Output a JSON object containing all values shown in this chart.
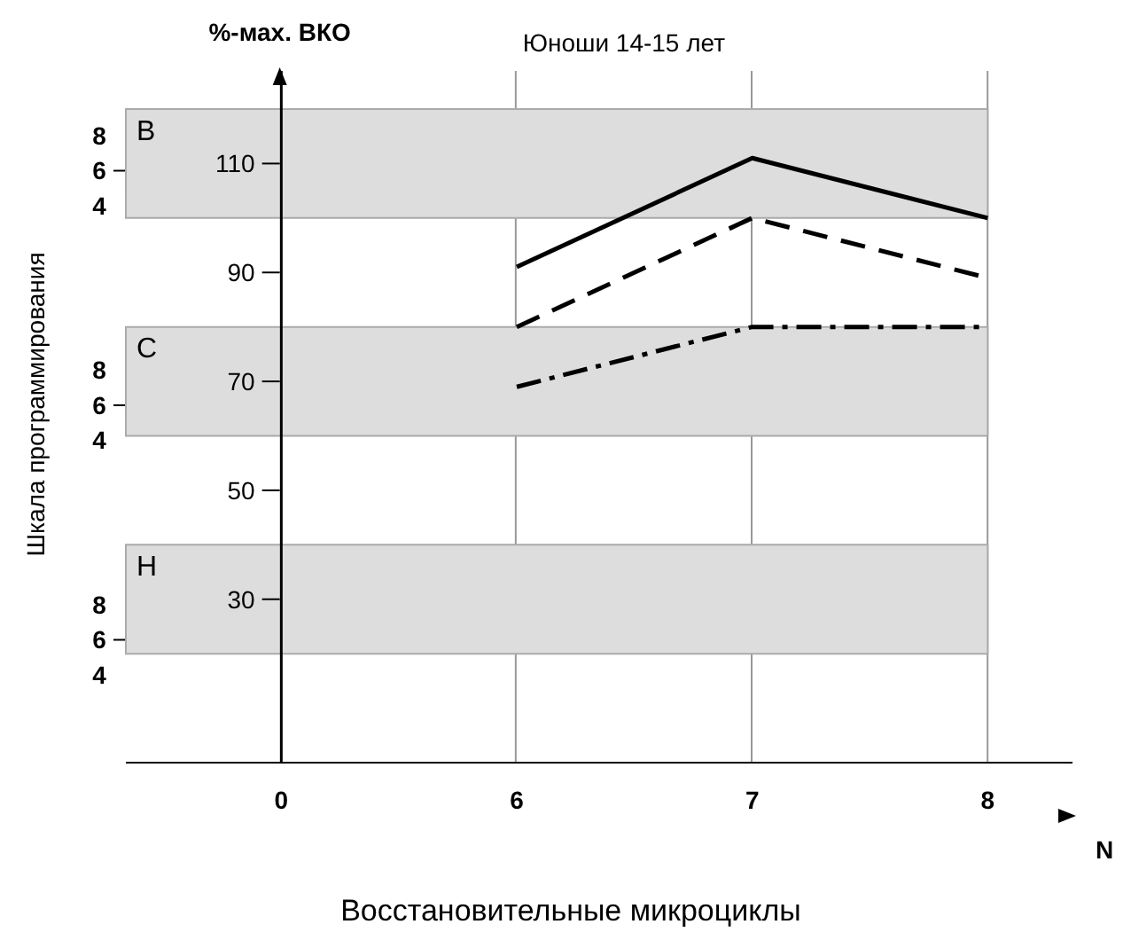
{
  "chart_data": {
    "type": "line",
    "title": "Юноши 14-15 лет",
    "xlabel": "Восстановительные микроциклы",
    "ylabel": "%-мах. ВКО",
    "y2label": "Шкала программирования",
    "categories": [
      "0",
      "6",
      "7",
      "8"
    ],
    "series": [
      {
        "color": "#000000",
        "line_style": "solid",
        "values": [
          null,
          91,
          111,
          100
        ]
      },
      {
        "color": "#000000",
        "line_style": "dashed",
        "values": [
          null,
          80,
          100,
          89
        ]
      },
      {
        "color": "#000000",
        "line_style": "dotted",
        "values": [
          null,
          69,
          80,
          80
        ]
      }
    ],
    "ylim": [
      0,
      127
    ],
    "yticks": [
      30,
      50,
      70,
      90,
      110
    ],
    "grid": "x",
    "marker": "none",
    "bands": [
      {
        "axis": "y",
        "from": 100,
        "to": 120,
        "label": "В",
        "color": "#dddddd"
      },
      {
        "axis": "y",
        "from": 60,
        "to": 80,
        "label": "С",
        "color": "#dddddd"
      },
      {
        "axis": "y",
        "from": 20,
        "to": 40,
        "label": "Н",
        "color": "#dddddd"
      }
    ],
    "annotations": [
      "8",
      "6",
      "4",
      "8",
      "6",
      "4",
      "8",
      "6",
      "4",
      "N"
    ]
  }
}
